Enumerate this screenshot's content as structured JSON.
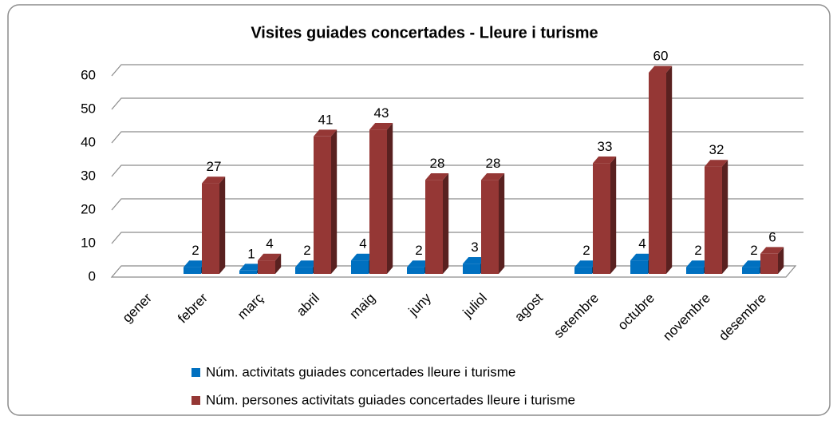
{
  "chart_data": {
    "type": "bar3d",
    "title": "Visites guiades concertades - Lleure i turisme",
    "categories": [
      "gener",
      "febrer",
      "març",
      "abril",
      "maig",
      "juny",
      "juliol",
      "agost",
      "setembre",
      "octubre",
      "novembre",
      "desembre"
    ],
    "series": [
      {
        "name": "Núm. activitats guiades concertades lleure i turisme",
        "color": "#0070c0",
        "values": [
          null,
          2,
          1,
          2,
          4,
          2,
          3,
          null,
          2,
          4,
          2,
          2
        ]
      },
      {
        "name": "Núm. persones activitats guiades concertades lleure i turisme",
        "color": "#953735",
        "values": [
          null,
          27,
          4,
          41,
          43,
          28,
          28,
          null,
          33,
          60,
          32,
          6
        ]
      }
    ],
    "ylim": [
      0,
      60
    ],
    "yticks": [
      0,
      10,
      20,
      30,
      40,
      50,
      60
    ],
    "grid": true,
    "legend": "bottom"
  }
}
